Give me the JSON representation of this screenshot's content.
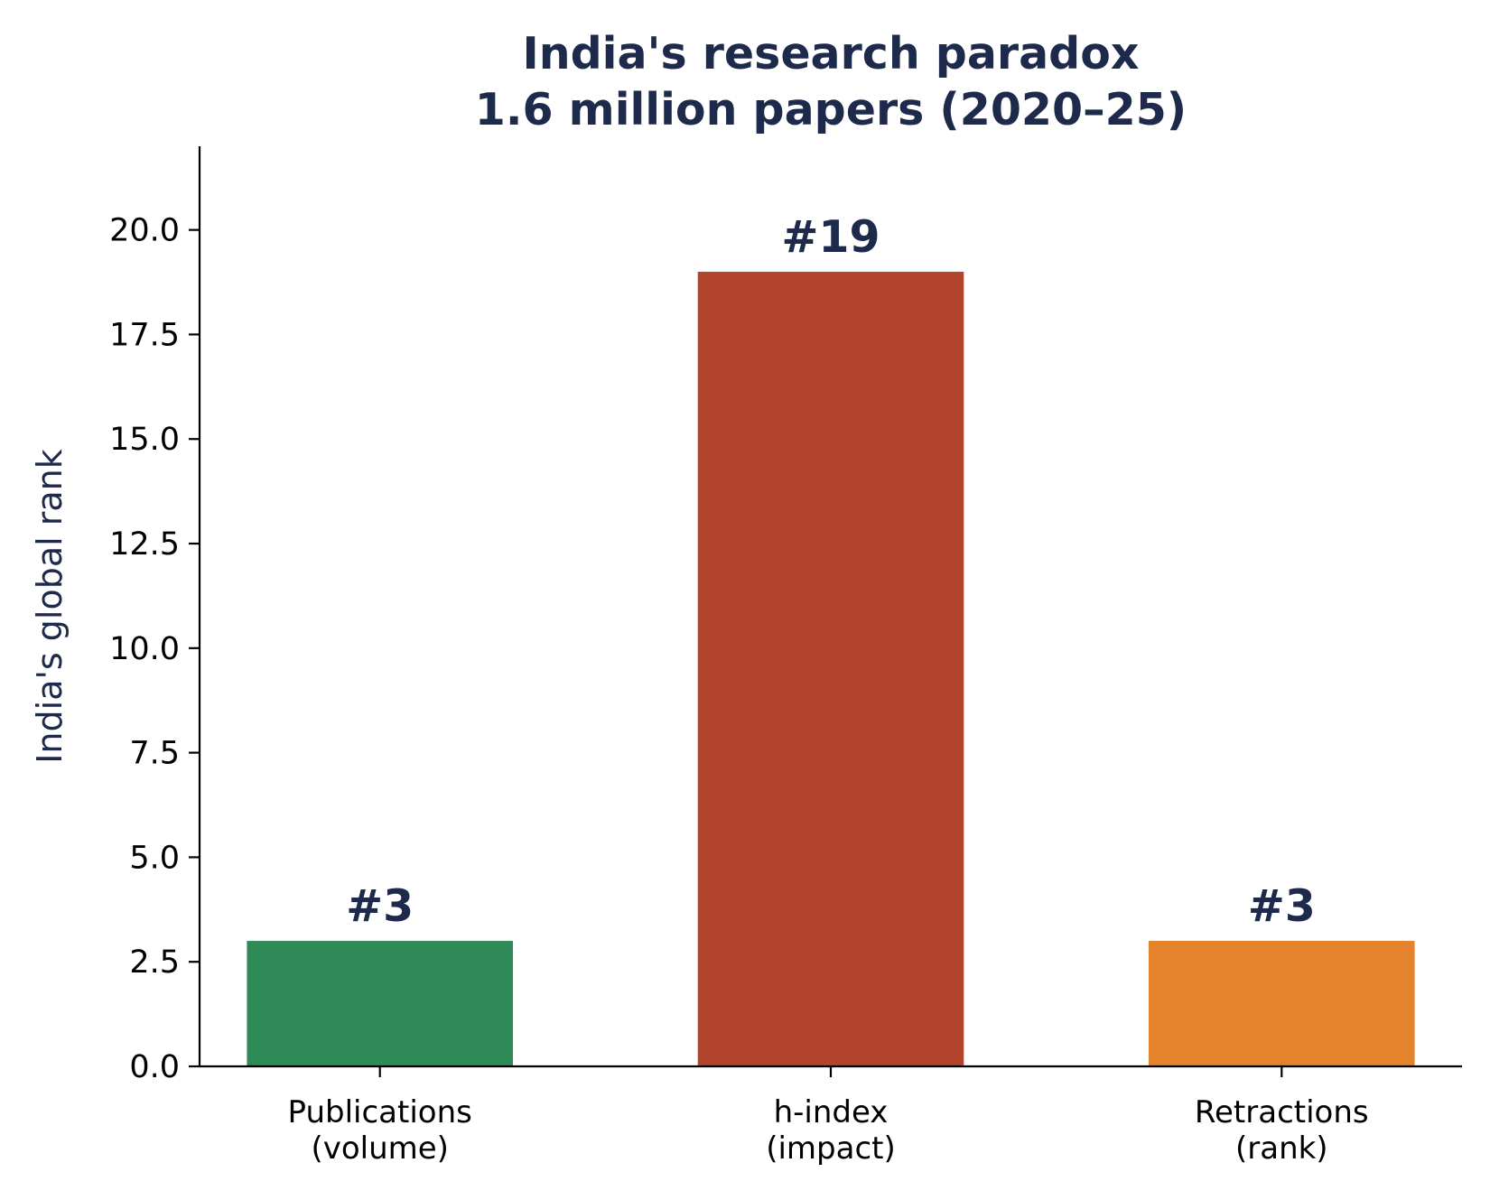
{
  "chart_data": {
    "type": "bar",
    "title_lines": [
      "India's research paradox",
      "1.6 million papers (2020–25)"
    ],
    "ylabel": "India's global rank",
    "xlabel": "",
    "categories": [
      [
        "Publications",
        "(volume)"
      ],
      [
        "h-index",
        "(impact)"
      ],
      [
        "Retractions",
        "(rank)"
      ]
    ],
    "values": [
      3,
      19,
      3
    ],
    "bar_labels": [
      "#3",
      "#19",
      "#3"
    ],
    "colors": [
      "#2e8b57",
      "#b5442f",
      "#e5832d"
    ],
    "ylim": [
      0,
      22
    ],
    "yticks": [
      0,
      2.5,
      5,
      7.5,
      10,
      12.5,
      15,
      17.5,
      20
    ],
    "ytick_labels": [
      "0.0",
      "2.5",
      "5.0",
      "7.5",
      "10.0",
      "12.5",
      "15.0",
      "17.5",
      "20.0"
    ],
    "grid": false,
    "legend": "none"
  }
}
